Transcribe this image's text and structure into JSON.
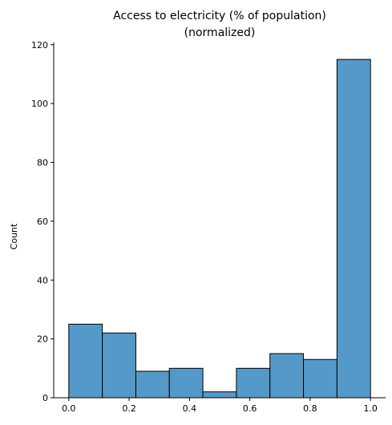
{
  "chart_data": {
    "type": "bar",
    "title_line1": "Access to electricity (% of population)",
    "title_line2": "(normalized)",
    "xlabel": "",
    "ylabel": "Count",
    "xlim": [
      -0.05,
      1.05
    ],
    "ylim": [
      0,
      120.75
    ],
    "grid": false,
    "bin_edges": [
      0.0,
      0.1111,
      0.2222,
      0.3333,
      0.4444,
      0.5556,
      0.6667,
      0.7778,
      0.8889,
      1.0
    ],
    "values": [
      25,
      22,
      9,
      10,
      2,
      10,
      15,
      13,
      115
    ],
    "x_ticks": [
      {
        "value": 0.0,
        "label": "0.0"
      },
      {
        "value": 0.2,
        "label": "0.2"
      },
      {
        "value": 0.4,
        "label": "0.4"
      },
      {
        "value": 0.6,
        "label": "0.6"
      },
      {
        "value": 0.8,
        "label": "0.8"
      },
      {
        "value": 1.0,
        "label": "1.0"
      }
    ],
    "y_ticks": [
      {
        "value": 0,
        "label": "0"
      },
      {
        "value": 20,
        "label": "20"
      },
      {
        "value": 40,
        "label": "40"
      },
      {
        "value": 60,
        "label": "60"
      },
      {
        "value": 80,
        "label": "80"
      },
      {
        "value": 100,
        "label": "100"
      },
      {
        "value": 120,
        "label": "120"
      }
    ],
    "bar_color": "#5599c8"
  }
}
